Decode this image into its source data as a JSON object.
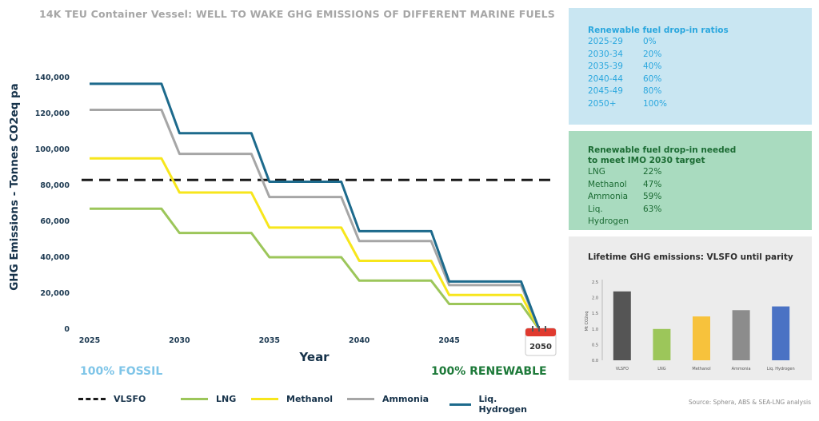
{
  "title": "14K TEU Container Vessel: WELL TO WAKE GHG EMISSIONS OF DIFFERENT MARINE FUELS",
  "colors": {
    "vlsfo": "#1a1a1a",
    "lng": "#9cc65a",
    "methanol": "#f7e61c",
    "ammonia": "#a6a6a6",
    "hydrogen": "#1d6a8c"
  },
  "calendar_label": "2050",
  "fossil_label": "100% FOSSIL",
  "renewable_label": "100% RENEWABLE",
  "source": "Source: Sphera, ABS & SEA-LNG analysis",
  "chart_data": [
    {
      "type": "line",
      "xlabel": "Year",
      "ylabel": "GHG Emissions - Tonnes CO2eq pa",
      "x_ticks": [
        "2025",
        "2030",
        "2035",
        "2040",
        "2045",
        "2050"
      ],
      "y_ticks": [
        "0",
        "20,000",
        "40,000",
        "60,000",
        "80,000",
        "100,000",
        "120,000",
        "140,000"
      ],
      "xlim": [
        2025,
        2050
      ],
      "ylim": [
        0,
        140000
      ],
      "series": [
        {
          "name": "VLSFO",
          "style": "dashed",
          "x": [
            2025,
            2050
          ],
          "y": [
            83000,
            83000
          ]
        },
        {
          "name": "LNG",
          "x": [
            2025,
            2029,
            2030,
            2034,
            2035,
            2039,
            2040,
            2044,
            2045,
            2049,
            2050
          ],
          "y": [
            67000,
            67000,
            53500,
            53500,
            40000,
            40000,
            27000,
            27000,
            14000,
            14000,
            0
          ]
        },
        {
          "name": "Methanol",
          "x": [
            2025,
            2029,
            2030,
            2034,
            2035,
            2039,
            2040,
            2044,
            2045,
            2049,
            2050
          ],
          "y": [
            95000,
            95000,
            76000,
            76000,
            56500,
            56500,
            38000,
            38000,
            19000,
            19000,
            0
          ]
        },
        {
          "name": "Ammonia",
          "x": [
            2025,
            2029,
            2030,
            2034,
            2035,
            2039,
            2040,
            2044,
            2045,
            2049,
            2050
          ],
          "y": [
            122000,
            122000,
            97500,
            97500,
            73500,
            73500,
            49000,
            49000,
            24500,
            24500,
            0
          ]
        },
        {
          "name": "Liq. Hydrogen",
          "x": [
            2025,
            2029,
            2030,
            2034,
            2035,
            2039,
            2040,
            2044,
            2045,
            2049,
            2050
          ],
          "y": [
            136500,
            136500,
            109000,
            109000,
            82000,
            82000,
            54500,
            54500,
            26500,
            26500,
            0
          ]
        }
      ],
      "legend": [
        "VLSFO",
        "LNG",
        "Methanol",
        "Ammonia",
        "Liq. Hydrogen"
      ],
      "legend_position": "bottom"
    },
    {
      "type": "bar",
      "title": "Lifetime GHG emissions: VLSFO until parity",
      "ylabel": "Mt CO2eq",
      "categories": [
        "VLSFO",
        "LNG",
        "Methanol",
        "Ammonia",
        "Liq. Hydrogen"
      ],
      "values": [
        2.2,
        1.0,
        1.4,
        1.6,
        1.72
      ],
      "colors": [
        "#555555",
        "#9cc65a",
        "#f7c23c",
        "#8c8c8c",
        "#4a72c4"
      ],
      "y_ticks": [
        "0.0",
        "0.5",
        "1.0",
        "1.5",
        "2.0",
        "2.5"
      ],
      "ylim": [
        0,
        2.5
      ]
    }
  ],
  "blue_panel": {
    "heading": "Renewable fuel drop-in ratios",
    "rows": [
      {
        "k": "2025-29",
        "v": "0%"
      },
      {
        "k": "2030-34",
        "v": "20%"
      },
      {
        "k": "2035-39",
        "v": "40%"
      },
      {
        "k": "2040-44",
        "v": "60%"
      },
      {
        "k": "2045-49",
        "v": "80%"
      },
      {
        "k": "2050+",
        "v": "100%"
      }
    ]
  },
  "green_panel": {
    "heading_line1": "Renewable fuel drop-in needed",
    "heading_line2": "to meet IMO 2030 target",
    "rows": [
      {
        "k": "LNG",
        "v": "22%"
      },
      {
        "k": "Methanol",
        "v": "47%"
      },
      {
        "k": "Ammonia",
        "v": "59%"
      },
      {
        "k": "Liq. Hydrogen",
        "v": "63%"
      }
    ]
  }
}
